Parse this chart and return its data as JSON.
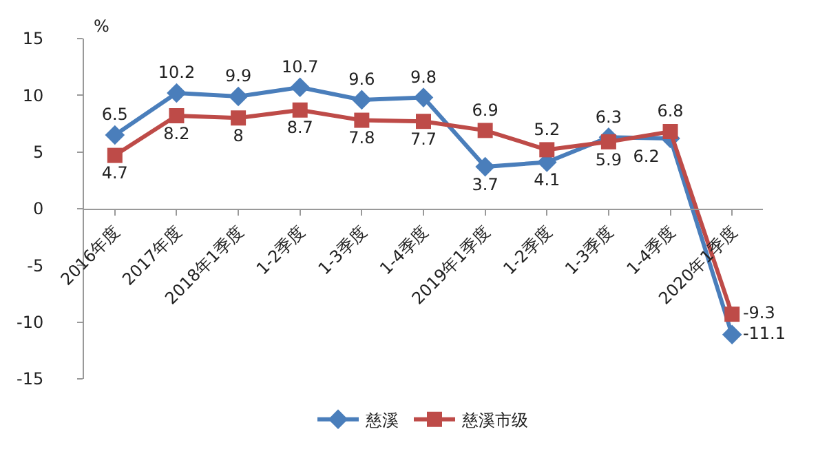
{
  "chart_data": {
    "type": "line",
    "ylabel": "%",
    "categories": [
      "2016年度",
      "2017年度",
      "2018年1季度",
      "1-2季度",
      "1-3季度",
      "1-4季度",
      "2019年1季度",
      "1-2季度",
      "1-3季度",
      "1-4季度",
      "2020年1季度"
    ],
    "series": [
      {
        "name": "慈溪",
        "color": "#4a7ebb",
        "marker": "diamond",
        "values": [
          6.5,
          10.2,
          9.9,
          10.7,
          9.6,
          9.8,
          3.7,
          4.1,
          6.3,
          6.2,
          -11.1
        ]
      },
      {
        "name": "慈溪市级",
        "color": "#be4b48",
        "marker": "square",
        "values": [
          4.7,
          8.2,
          8.0,
          8.7,
          7.8,
          7.7,
          6.9,
          5.2,
          5.9,
          6.8,
          -9.3
        ]
      }
    ],
    "ylim": [
      -15,
      15
    ],
    "yticks": [
      -15,
      -10,
      -5,
      0,
      5,
      10,
      15
    ],
    "grid": false,
    "legend": "bottom",
    "data_labels": true
  }
}
